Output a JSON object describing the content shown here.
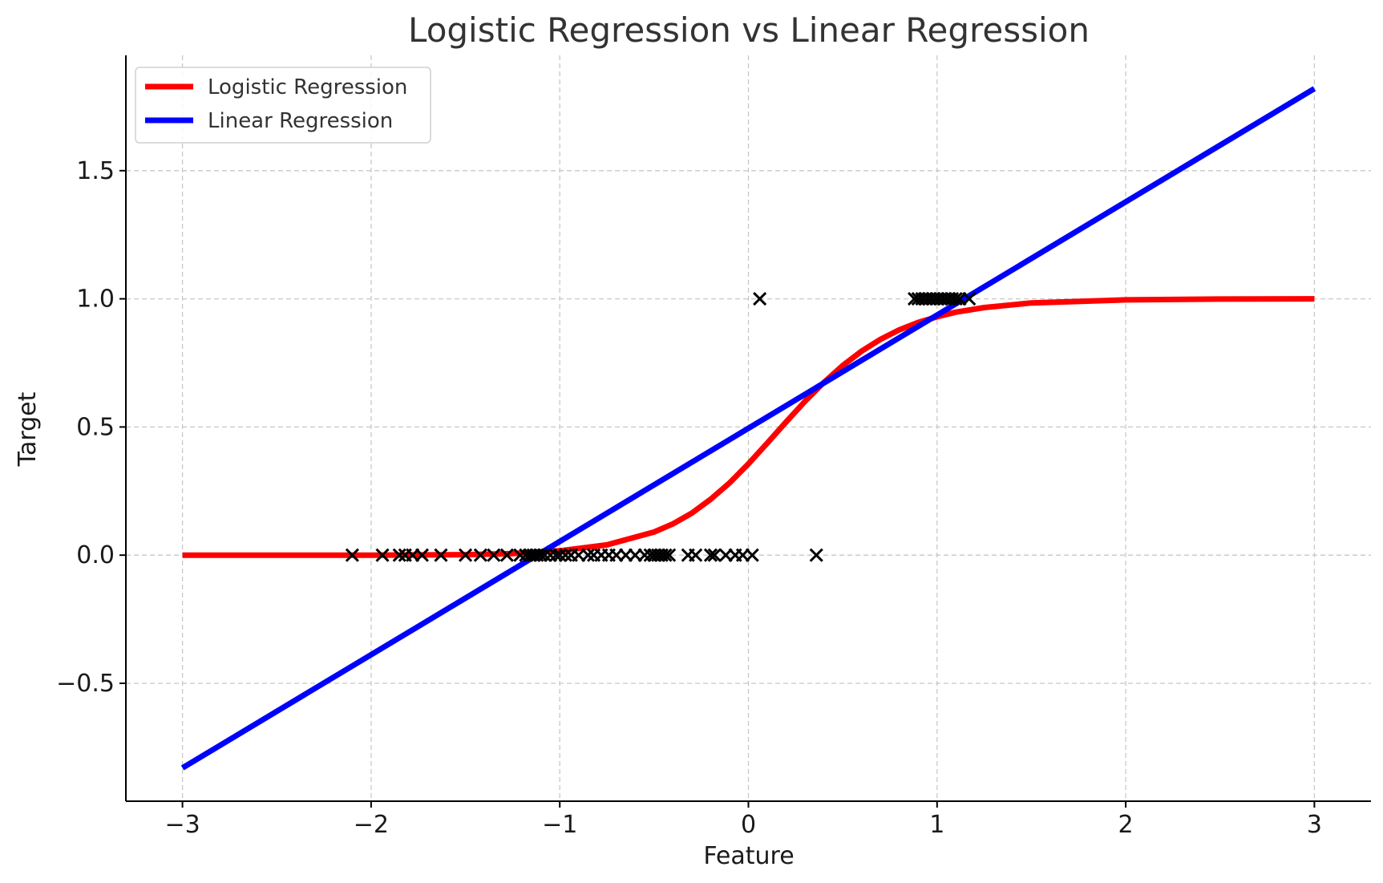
{
  "chart_data": {
    "type": "scatter",
    "title": "Logistic Regression vs Linear Regression",
    "xlabel": "Feature",
    "ylabel": "Target",
    "xlim": [
      -3.3,
      3.3
    ],
    "ylim": [
      -0.96,
      1.95
    ],
    "x_ticks": [
      -3,
      -2,
      -1,
      0,
      1,
      2,
      3
    ],
    "x_tick_labels": [
      "−3",
      "−2",
      "−1",
      "0",
      "1",
      "2",
      "3"
    ],
    "y_ticks": [
      -0.5,
      0.0,
      0.5,
      1.0,
      1.5
    ],
    "y_tick_labels": [
      "−0.5",
      "0.0",
      "0.5",
      "1.0",
      "1.5"
    ],
    "grid": true,
    "grid_style": "dashed",
    "legend_position": "top-left",
    "series": [
      {
        "name": "Logistic Regression",
        "kind": "line",
        "color": "#ff0000",
        "x": [
          -3.0,
          -2.5,
          -2.0,
          -1.5,
          -1.25,
          -1.0,
          -0.75,
          -0.5,
          -0.4,
          -0.3,
          -0.2,
          -0.1,
          0.0,
          0.1,
          0.2,
          0.3,
          0.4,
          0.5,
          0.6,
          0.7,
          0.8,
          0.9,
          1.0,
          1.1,
          1.25,
          1.5,
          2.0,
          2.5,
          3.0
        ],
        "y": [
          0.0,
          0.0,
          0.0,
          0.002,
          0.006,
          0.017,
          0.04,
          0.09,
          0.122,
          0.164,
          0.218,
          0.282,
          0.356,
          0.437,
          0.52,
          0.6,
          0.674,
          0.74,
          0.796,
          0.842,
          0.879,
          0.908,
          0.93,
          0.948,
          0.966,
          0.984,
          0.996,
          0.999,
          1.0
        ]
      },
      {
        "name": "Linear Regression",
        "kind": "line",
        "color": "#0000ff",
        "x": [
          -3.0,
          3.0
        ],
        "y": [
          -0.83,
          1.82
        ]
      },
      {
        "kind": "scatter",
        "marker": "x",
        "color": "#000000",
        "x": [
          -2.1,
          -1.94,
          -1.85,
          -1.82,
          -1.78,
          -1.73,
          -1.63,
          -1.5,
          -1.42,
          -1.35,
          -1.28,
          -1.21,
          -1.18,
          -1.16,
          -1.14,
          -1.12,
          -1.1,
          -1.08,
          -1.05,
          -1.02,
          -1.0,
          -0.97,
          -0.94,
          -0.9,
          -0.85,
          -0.82,
          -0.78,
          -0.74,
          -0.7,
          -0.65,
          -0.6,
          -0.55,
          -0.52,
          -0.5,
          -0.48,
          -0.46,
          -0.44,
          -0.42,
          -0.32,
          -0.28,
          -0.2,
          -0.18,
          -0.12,
          -0.07,
          -0.03,
          0.02,
          0.36,
          0.06,
          0.88,
          0.9,
          0.92,
          0.94,
          0.96,
          0.98,
          1.0,
          1.02,
          1.04,
          1.06,
          1.08,
          1.1,
          1.12,
          1.17
        ],
        "y": [
          0,
          0,
          0,
          0,
          0,
          0,
          0,
          0,
          0,
          0,
          0,
          0,
          0,
          0,
          0,
          0,
          0,
          0,
          0,
          0,
          0,
          0,
          0,
          0,
          0,
          0,
          0,
          0,
          0,
          0,
          0,
          0,
          0,
          0,
          0,
          0,
          0,
          0,
          0,
          0,
          0,
          0,
          0,
          0,
          0,
          0,
          0,
          1,
          1,
          1,
          1,
          1,
          1,
          1,
          1,
          1,
          1,
          1,
          1,
          1,
          1,
          1
        ]
      }
    ]
  }
}
